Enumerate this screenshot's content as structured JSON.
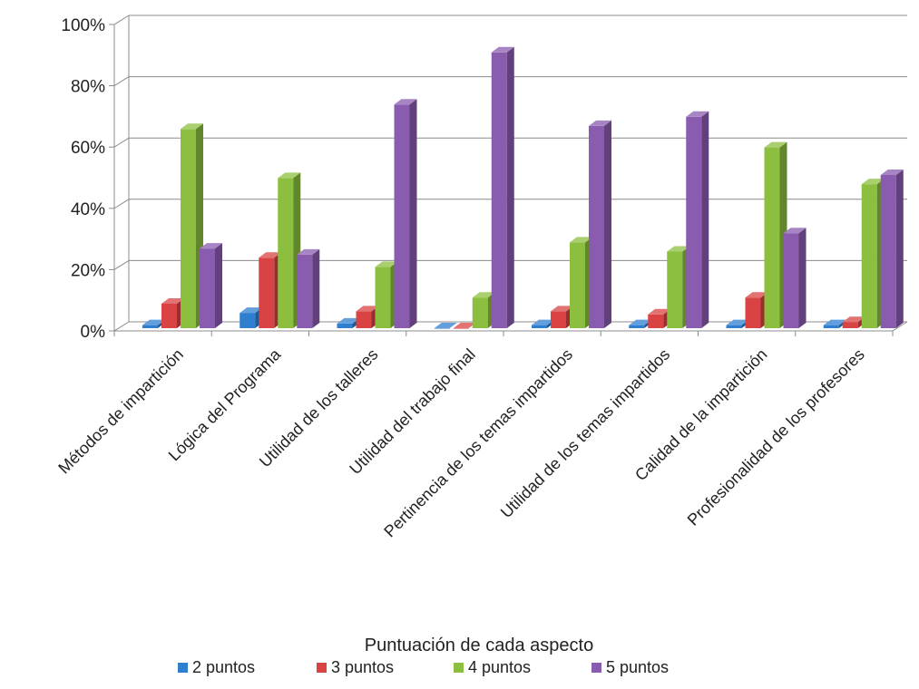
{
  "chart_data": {
    "type": "bar",
    "title": "",
    "xlabel": "Puntuación de cada aspecto",
    "ylabel": "",
    "ylim": [
      0,
      100
    ],
    "y_ticks": [
      "0%",
      "20%",
      "40%",
      "60%",
      "80%",
      "100%"
    ],
    "y_tick_values": [
      0,
      20,
      40,
      60,
      80,
      100
    ],
    "grid": true,
    "legend_position": "bottom",
    "categories": [
      "Métodos de impartición",
      "Lógica del Programa",
      "Utilidad de los talleres",
      "Utilidad del trabajo final",
      "Pertinencia de los temas impartidos",
      "Utilidad de los temas impartidos",
      "Calidad de la impartición",
      "Profesionalidad de los profesores"
    ],
    "series": [
      {
        "name": "2 puntos",
        "color": "#2f7fd0",
        "values": [
          1,
          5,
          1.5,
          0,
          1,
          1,
          1,
          1
        ]
      },
      {
        "name": "3 puntos",
        "color": "#d94343",
        "values": [
          8,
          23,
          5.5,
          0,
          5.5,
          4.5,
          10,
          2
        ]
      },
      {
        "name": "4 puntos",
        "color": "#8cbf3f",
        "values": [
          65,
          49,
          20,
          10,
          28,
          25,
          59,
          47
        ]
      },
      {
        "name": "5 puntos",
        "color": "#8a5cb0",
        "values": [
          26,
          24,
          73,
          90,
          66,
          69,
          31,
          50
        ]
      }
    ]
  }
}
